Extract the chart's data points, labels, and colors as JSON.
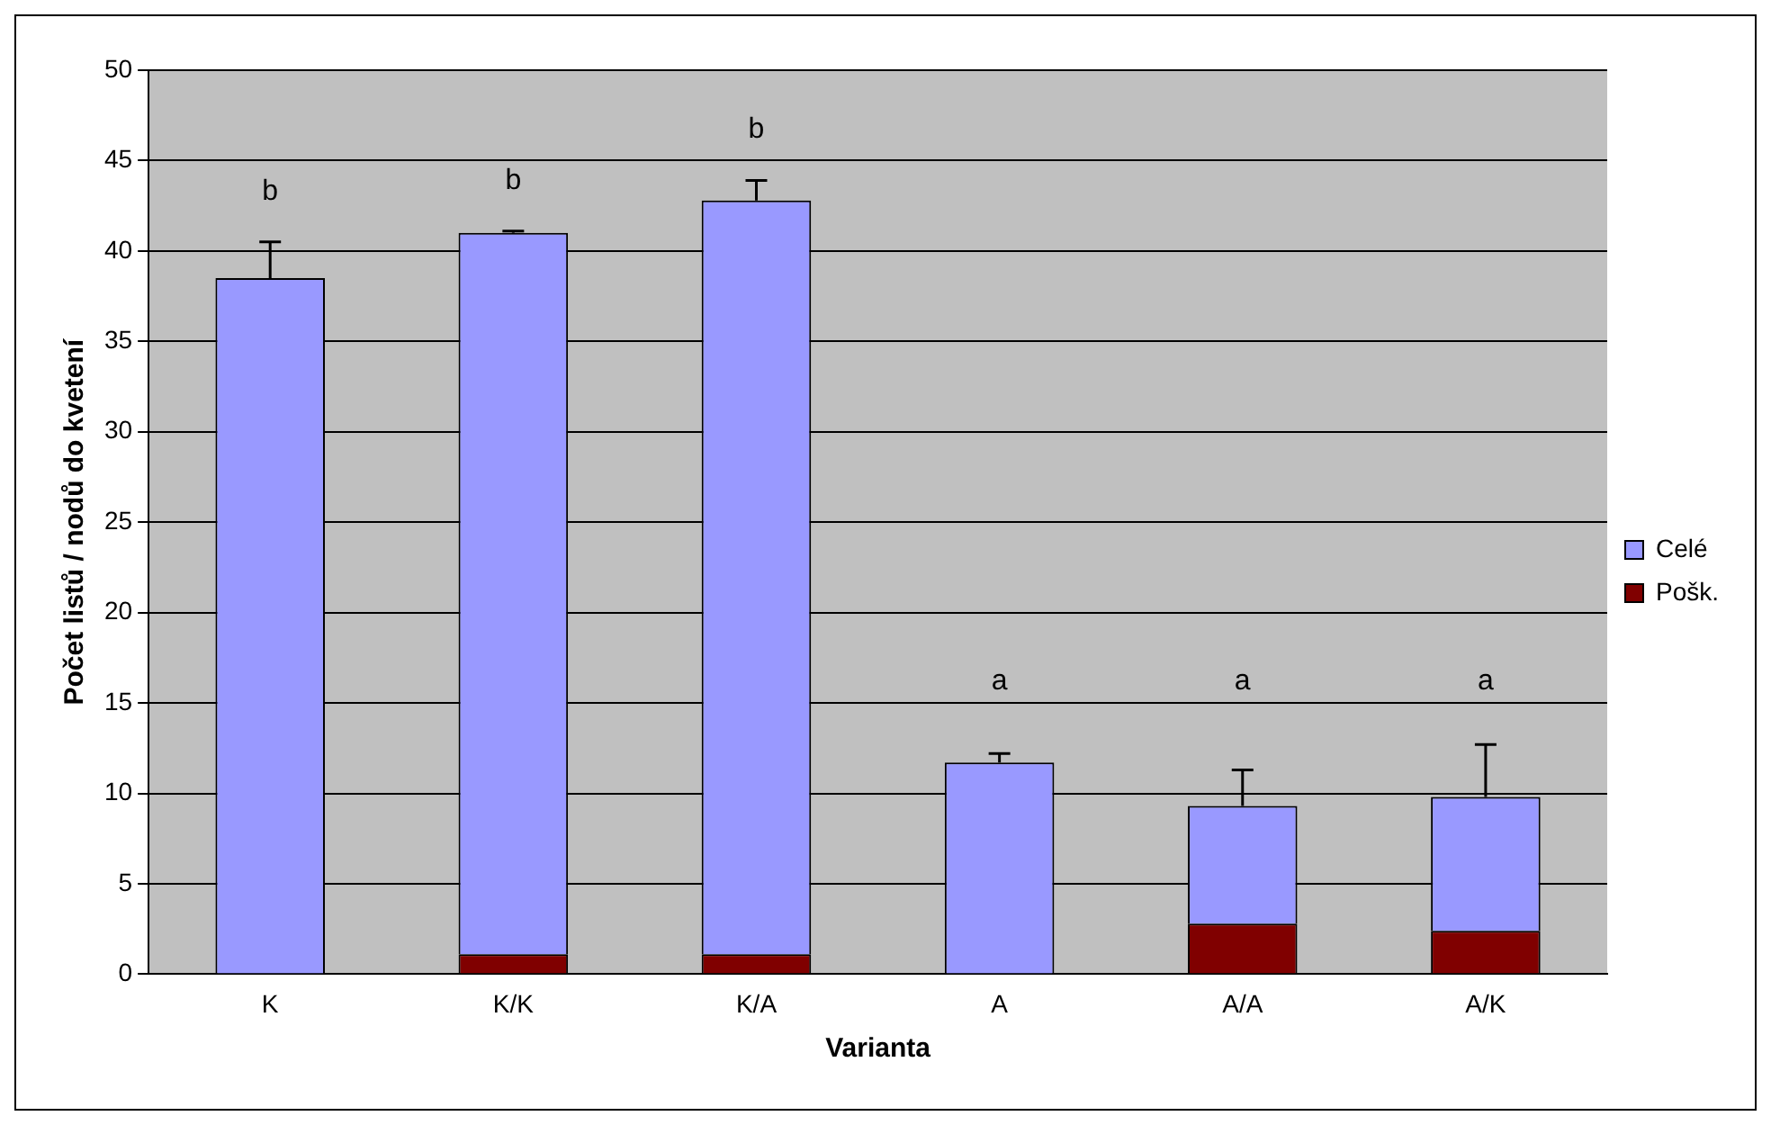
{
  "chart_data": {
    "type": "bar",
    "xlabel": "Varianta",
    "ylabel": "Počet listů / nodů do kvetení",
    "categories": [
      "K",
      "K/K",
      "K/A",
      "A",
      "A/A",
      "A/K"
    ],
    "stacked": true,
    "ylim": [
      0,
      50
    ],
    "yticks": [
      0,
      5,
      10,
      15,
      20,
      25,
      30,
      35,
      40,
      45,
      50
    ],
    "grid": "y",
    "legend": "right",
    "series": [
      {
        "name": "Pošk.",
        "color": "#800000",
        "values": [
          0,
          1.1,
          1.1,
          0,
          2.8,
          2.4
        ]
      },
      {
        "name": "Celé",
        "color": "#9999ff",
        "values": [
          38.5,
          39.9,
          41.7,
          11.7,
          6.5,
          7.4
        ],
        "errors": [
          2.0,
          0.1,
          1.1,
          0.5,
          2.0,
          2.9
        ]
      }
    ],
    "annotations": [
      "b",
      "b",
      "b",
      "a",
      "a",
      "a"
    ]
  }
}
